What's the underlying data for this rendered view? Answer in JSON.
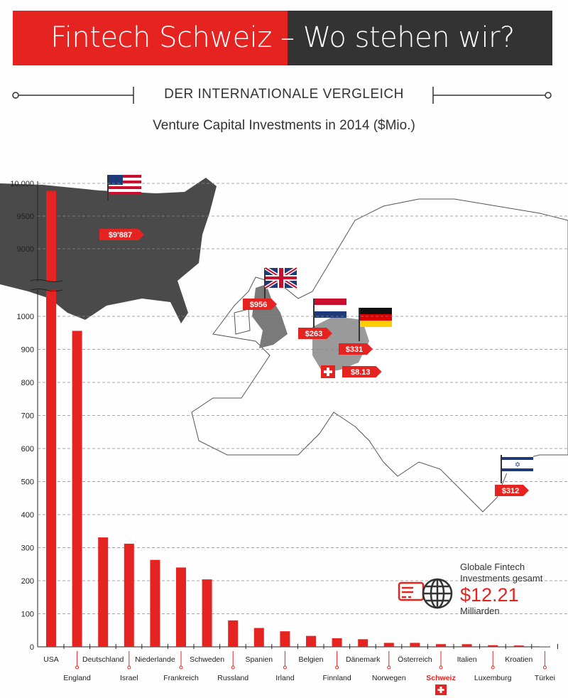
{
  "header": {
    "title": "Fintech Schweiz – Wo stehen wir?",
    "section": "DER INTERNATIONALE VERGLEICH"
  },
  "chart_data": {
    "type": "bar",
    "title": "Venture Capital Investments in 2014 ($Mio.)",
    "xlabel": "",
    "ylabel": "$Mio.",
    "ylim": [
      0,
      10000
    ],
    "axis_break": [
      1000,
      9000
    ],
    "yticks": [
      0,
      100,
      200,
      300,
      400,
      500,
      600,
      700,
      800,
      900,
      1000,
      9000,
      9500,
      10000
    ],
    "ytick_labels": [
      "0",
      "100",
      "200",
      "300",
      "400",
      "500",
      "600",
      "700",
      "800",
      "900",
      "1000",
      "9000",
      "9500",
      "10,000"
    ],
    "categories": [
      "USA",
      "England",
      "Deutschland",
      "Israel",
      "Niederlande",
      "Frankreich",
      "Schweden",
      "Russland",
      "Spanien",
      "Irland",
      "Belgien",
      "Finnland",
      "Dänemark",
      "Norwegen",
      "Österreich",
      "Schweiz",
      "Italien",
      "Luxemburg",
      "Kroatien",
      "Türkei"
    ],
    "values": [
      9887,
      956,
      331,
      312,
      263,
      240,
      204,
      80,
      57,
      47,
      33,
      26,
      23,
      12,
      12,
      8.13,
      8,
      5,
      4,
      1
    ],
    "highlight": "Schweiz",
    "grid": true,
    "annotations": [
      {
        "country": "USA",
        "label": "$9'887"
      },
      {
        "country": "England",
        "label": "$956"
      },
      {
        "country": "Niederlande",
        "label": "$263"
      },
      {
        "country": "Deutschland",
        "label": "$331"
      },
      {
        "country": "Schweiz",
        "label": "$8.13"
      },
      {
        "country": "Israel",
        "label": "$312"
      }
    ]
  },
  "summary": {
    "line1": "Globale Fintech",
    "line2": "Investments gesamt",
    "value": "$12.21",
    "unit": "Milliarden"
  },
  "colors": {
    "red": "#e52421",
    "dark": "#333333",
    "map_dark": "#4a4a4a",
    "map_light": "#9a9a9a"
  }
}
